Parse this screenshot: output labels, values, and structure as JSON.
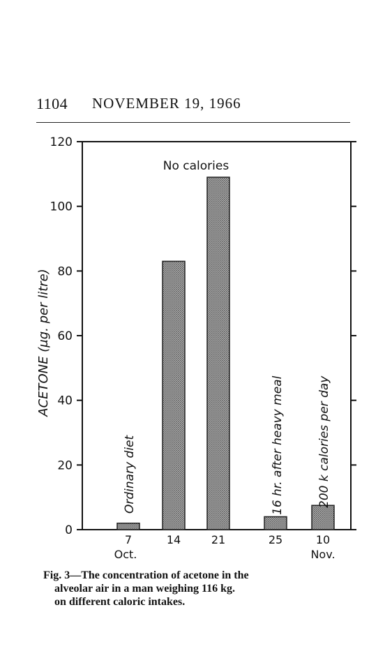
{
  "header": {
    "page_number": "1104",
    "date": "NOVEMBER 19, 1966"
  },
  "chart_data": {
    "type": "bar",
    "ylabel": "ACETONE (μg. per litre)",
    "ylim": [
      0,
      120
    ],
    "yticks": [
      "0",
      "20",
      "40",
      "60",
      "80",
      "100",
      "120"
    ],
    "categories": [
      "7",
      "14",
      "21",
      "25",
      "10"
    ],
    "category_sublabels": [
      "Oct.",
      "",
      "",
      "",
      "Nov."
    ],
    "values": [
      2,
      83,
      109,
      4,
      7.5
    ],
    "annotations": {
      "no_calories": "No calories",
      "ordinary_diet": "Ordinary diet",
      "after_meal": "16 hr. after heavy meal",
      "low_calories": "200 k calories per day"
    },
    "bar_fill": "#8a8a8a",
    "grid": false
  },
  "caption": {
    "line1": "Fig. 3—The concentration of acetone in the",
    "line2": "alveolar air in a man weighing 116 kg.",
    "line3": "on different caloric intakes."
  }
}
